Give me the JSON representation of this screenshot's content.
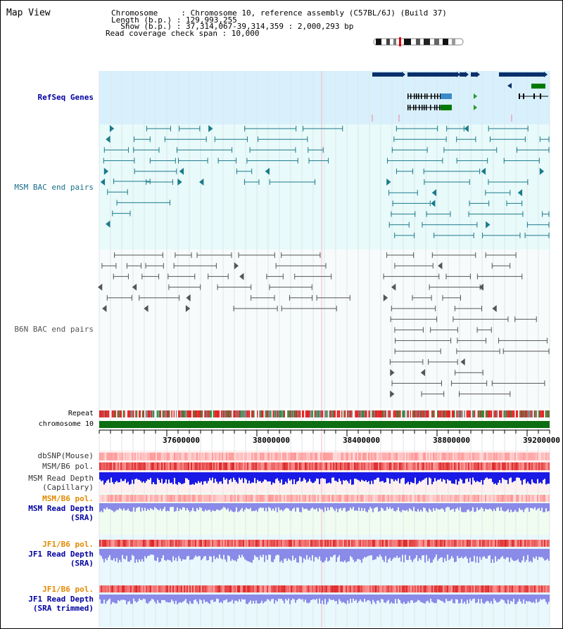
{
  "view_title": "Map View",
  "info": {
    "chromosome_line": "Chromosome     : Chromosome 10, reference assembly (C57BL/6J) (Build 37)",
    "length_line": "Length (b.p.) : 129,993,255",
    "show_line": "  Show (b.p.) : 37,314,067-39,314,359 : 2,000,293 bp",
    "coverage_line": "Read coverage check span : 10,000"
  },
  "tracks": {
    "refseq": "RefSeq Genes",
    "msm_bac": "MSM BAC end pairs",
    "b6n_bac": "B6N BAC end pairs",
    "repeat": "Repeat",
    "chromosome": "chromosome 10",
    "dbsnp": "dbSNP(Mouse)",
    "msm_b6_pol_1": "MSM/B6 pol.",
    "msm_depth_cap": "MSM Read Depth\n(Capillary)",
    "msm_b6_pol_2": "MSM/B6 pol.",
    "msm_depth_sra": "MSM Read Depth\n(SRA)",
    "jf1_b6_pol_1": "JF1/B6 pol.",
    "jf1_depth_sra": "JF1 Read Depth\n(SRA)",
    "jf1_b6_pol_2": "JF1/B6 pol.",
    "jf1_depth_trim": "JF1 Read Depth\n(SRA trimmed)"
  },
  "axis_ticks": [
    "37600000",
    "38000000",
    "38400000",
    "38800000",
    "39200000"
  ],
  "colors": {
    "refseq_bg": "#d8f0fc",
    "msm_bg": "#e8fafa",
    "b6n_bg": "#f8fbfb",
    "gene_dark": "#0b2f6b",
    "gene_green": "#007a00",
    "msm_line": "#1a7a8a",
    "b6n_line": "#555555",
    "chrom_green": "#0d6e12",
    "pol_red": "#e03a3a",
    "depth_blue": "#1a1ae6",
    "depth_light": "#8a8ae8",
    "label_blue": "#0000a0",
    "label_orange": "#e08a00",
    "label_teal": "#1a6e8a"
  }
}
